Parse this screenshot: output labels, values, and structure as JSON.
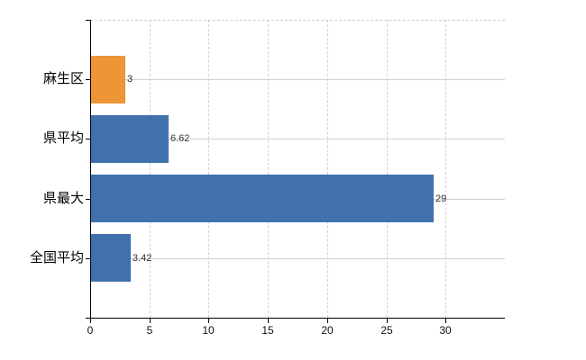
{
  "chart_data": {
    "type": "bar",
    "orientation": "horizontal",
    "title": "",
    "xlabel": "",
    "ylabel": "",
    "categories": [
      "麻生区",
      "県平均",
      "県最大",
      "全国平均"
    ],
    "values": [
      3,
      6.62,
      29,
      3.42
    ],
    "value_labels": [
      "3",
      "6.62",
      "29",
      "3.42"
    ],
    "bar_colors": [
      "#EE9538",
      "#4171AC",
      "#4171AC",
      "#4171AC"
    ],
    "xlim": [
      0,
      35
    ],
    "xticks": [
      0,
      5,
      10,
      15,
      20,
      25,
      30
    ],
    "xtick_labels": [
      "0",
      "5",
      "10",
      "15",
      "20",
      "25",
      "30"
    ],
    "grid": "on",
    "legend": "none"
  },
  "style": {
    "background": "#FFFFFF",
    "axis_color": "#000000",
    "vertical_gridline_color": "#D2D2D2",
    "horizontal_gridline_color": "#CDD2CD",
    "top_border_color": "#C9C9C9",
    "category_label_color": "#000000",
    "tick_label_color": "#111111",
    "value_label_color": "#333333"
  }
}
